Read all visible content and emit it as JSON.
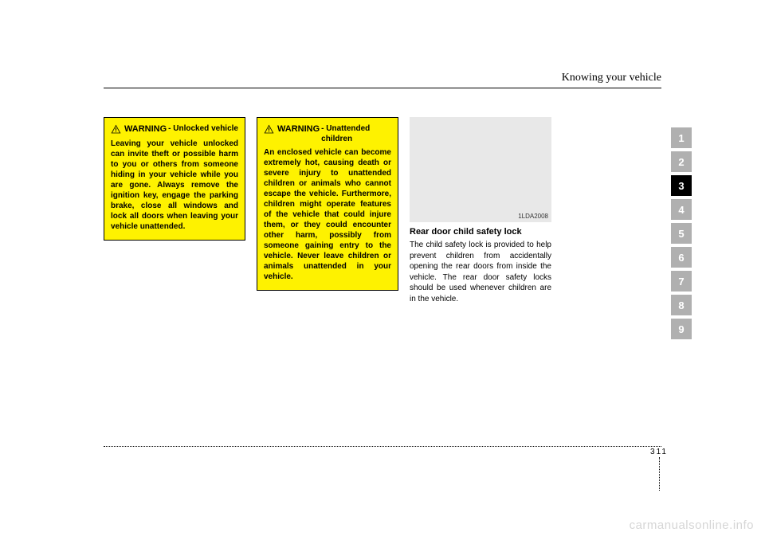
{
  "header": {
    "section_title": "Knowing your vehicle"
  },
  "warnings": [
    {
      "label": "WARNING",
      "subtitle": "- Unlocked vehicle",
      "body": "Leaving your vehicle unlocked can invite theft or possible harm to you or others from someone hiding in your vehicle while you are gone. Always remove the ignition key, engage the parking brake, close all windows and lock all doors when leaving your vehicle unattended."
    },
    {
      "label": "WARNING",
      "subtitle": "- Unattended children",
      "body": "An enclosed vehicle can become extremely hot, causing death or severe injury to unattended children or animals who cannot escape the vehicle. Furthermore, children might operate features of the vehicle that could injure them, or they could encounter other harm, possibly from someone gaining entry to the vehicle. Never leave children or animals unattended in your vehicle."
    }
  ],
  "figure": {
    "code": "1LDA2008"
  },
  "article": {
    "heading": "Rear door child safety lock",
    "body": "The child safety lock is provided to help prevent children from accidentally opening the rear doors from inside the vehicle. The rear door safety locks should be used whenever children are in the vehicle."
  },
  "tabs": {
    "items": [
      "1",
      "2",
      "3",
      "4",
      "5",
      "6",
      "7",
      "8",
      "9"
    ],
    "active_index": 2
  },
  "footer": {
    "chapter": "3",
    "page": "11"
  },
  "watermark": "carmanualsonline.info",
  "colors": {
    "warning_bg": "#fef200",
    "tab_inactive": "#b0b0b0",
    "tab_active": "#000000",
    "watermark": "#d6d6d6"
  }
}
